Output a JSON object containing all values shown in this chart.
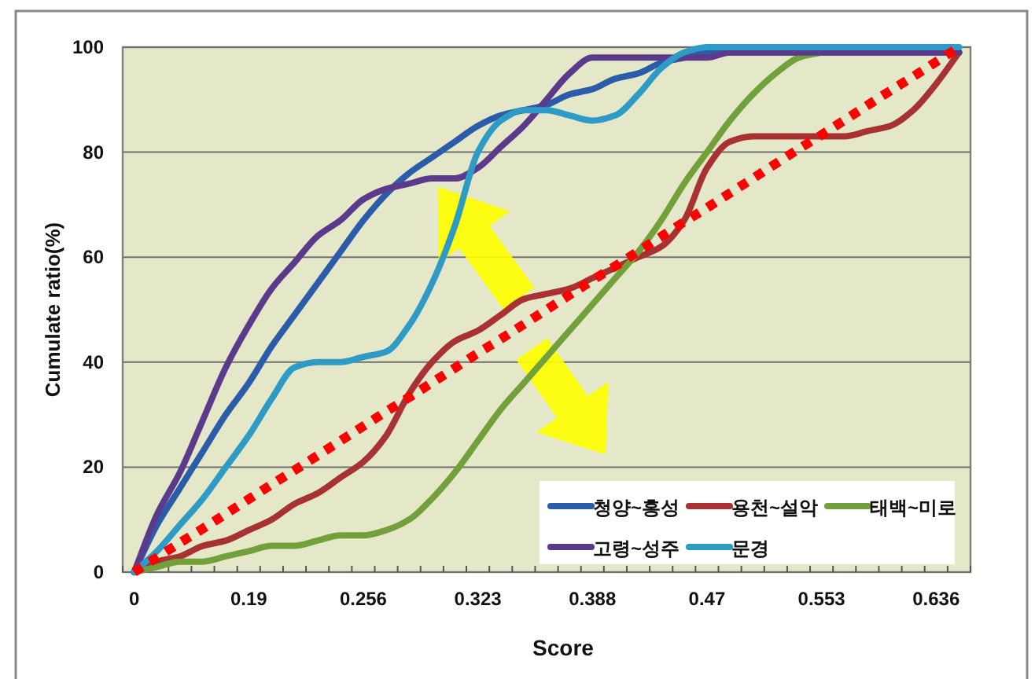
{
  "chart_data": {
    "type": "line",
    "xlabel": "Score",
    "ylabel": "Cumulate ratio(%)",
    "categories": [
      "0",
      null,
      null,
      null,
      null,
      "0.19",
      null,
      null,
      null,
      null,
      "0.256",
      null,
      null,
      null,
      null,
      "0.323",
      null,
      null,
      null,
      null,
      "0.388",
      null,
      null,
      null,
      null,
      "0.47",
      null,
      null,
      null,
      null,
      "0.553",
      null,
      null,
      null,
      null,
      "0.636",
      null
    ],
    "ylim": [
      0,
      100
    ],
    "yticks": [
      0,
      20,
      40,
      60,
      80,
      100
    ],
    "grid": "y",
    "legend": "bottom right",
    "series": [
      {
        "name": "청양~홍성",
        "color": "#2a5caa",
        "values": [
          0,
          9,
          16,
          23,
          30,
          36,
          43,
          49,
          55,
          61,
          67,
          72,
          76,
          79,
          82,
          85,
          87,
          88,
          89,
          91,
          92,
          94,
          95,
          97,
          98,
          99,
          99,
          99,
          99,
          99,
          99,
          99,
          99,
          99,
          99,
          99,
          99
        ]
      },
      {
        "name": "용천~설악",
        "color": "#a83232",
        "values": [
          0,
          2,
          3,
          5,
          6,
          8,
          10,
          13,
          15,
          18,
          21,
          26,
          34,
          40,
          44,
          46,
          49,
          52,
          53,
          54,
          56,
          58,
          60,
          62,
          67,
          77,
          82,
          83,
          83,
          83,
          83,
          83,
          84,
          85,
          88,
          93,
          99
        ]
      },
      {
        "name": "태백~미로",
        "color": "#72a03a",
        "values": [
          0,
          1,
          2,
          2,
          3,
          4,
          5,
          5,
          6,
          7,
          7,
          8,
          10,
          14,
          19,
          25,
          31,
          36,
          41,
          46,
          51,
          56,
          61,
          67,
          74,
          80,
          86,
          91,
          95,
          98,
          99,
          null,
          null,
          null,
          null,
          null,
          null
        ]
      },
      {
        "name": "고령~성주",
        "color": "#5b3a8c",
        "values": [
          0,
          11,
          19,
          29,
          39,
          47,
          54,
          59,
          64,
          67,
          71,
          73,
          74,
          75,
          75,
          77,
          81,
          85,
          90,
          95,
          98,
          98,
          98,
          98,
          98,
          98,
          99,
          99,
          99,
          99,
          99,
          99,
          99,
          99,
          99,
          99,
          99
        ]
      },
      {
        "name": "문경",
        "color": "#2e9ac6",
        "values": [
          0,
          4,
          9,
          14,
          20,
          26,
          33,
          39,
          40,
          40,
          41,
          42,
          47,
          55,
          66,
          80,
          86,
          88,
          88,
          87,
          86,
          87,
          91,
          96,
          99,
          100,
          100,
          100,
          100,
          100,
          100,
          100,
          100,
          100,
          100,
          100,
          100
        ]
      },
      {
        "color": "#ff0000",
        "line_style": "dotted",
        "values": [
          0,
          2.8,
          5.6,
          8.3,
          11.1,
          13.9,
          16.7,
          19.4,
          22.2,
          25,
          27.8,
          30.6,
          33.3,
          36.1,
          38.9,
          41.7,
          44.4,
          47.2,
          50,
          52.8,
          55.6,
          58.3,
          61.1,
          63.9,
          66.7,
          69.4,
          72.2,
          75,
          77.8,
          80.6,
          83.3,
          86.1,
          88.9,
          91.7,
          94.4,
          97.2,
          100
        ]
      }
    ]
  }
}
